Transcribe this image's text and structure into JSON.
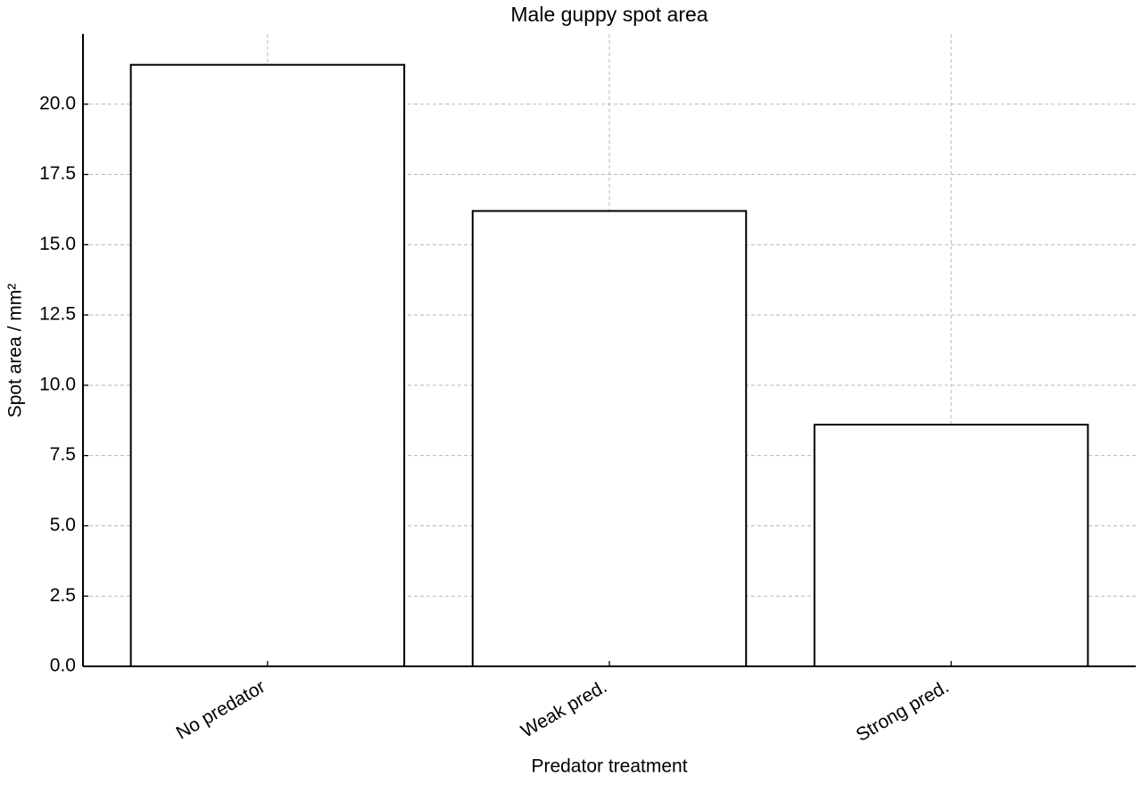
{
  "chart_data": {
    "type": "bar",
    "title": "Male guppy spot area",
    "xlabel": "Predator treatment",
    "ylabel": "Spot area / mm²",
    "categories": [
      "No predator",
      "Weak pred.",
      "Strong pred."
    ],
    "values": [
      21.4,
      16.2,
      8.6
    ],
    "color": "#ffffff",
    "edgecolor": "#000000",
    "ylim": [
      0,
      22.5
    ],
    "yticks": [
      {
        "value": 0,
        "label": "0.0"
      },
      2.5,
      {
        "value": 5,
        "label": "5.0"
      },
      7.5,
      {
        "value": 10,
        "label": "10.0"
      },
      12.5,
      {
        "value": 15,
        "label": "15.0"
      },
      17.5,
      {
        "value": 20,
        "label": "20.0"
      }
    ],
    "grid": true
  }
}
